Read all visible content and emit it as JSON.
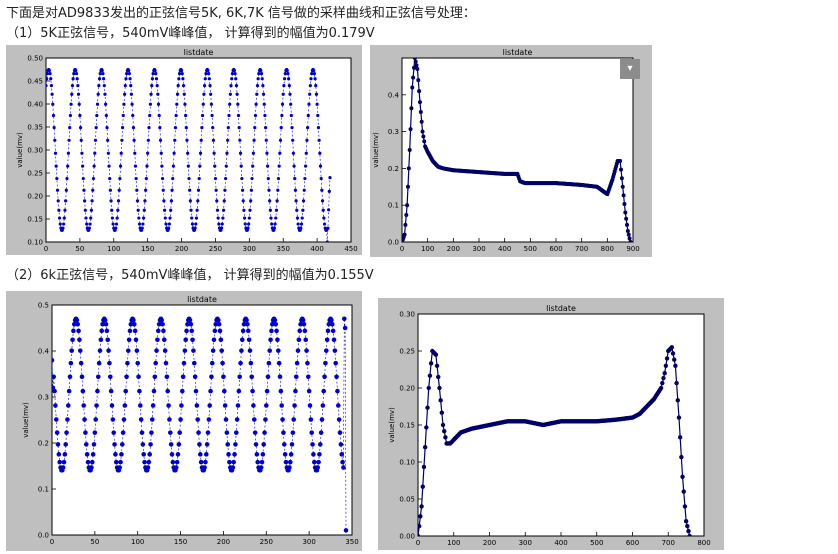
{
  "text": {
    "intro": "下面是对AD9833发出的正弦信号5K, 6K,7K 信号做的采样曲线和正弦信号处理：",
    "section1": "（1）5K正弦信号，540mV峰峰值， 计算得到的幅值为0.179V",
    "section2": "（2）6k正弦信号，540mV峰峰值， 计算得到的幅值为0.155V"
  },
  "icons": {
    "dropdown": "▾"
  },
  "colors": {
    "frame": "#bfbfbf",
    "series_light": "#0000cc",
    "series_dark": "#000066"
  },
  "chart_data": [
    {
      "type": "scatter",
      "title": "listdate",
      "ylabel": "value(mv)",
      "xlim": [
        0,
        450
      ],
      "ylim": [
        0.1,
        0.5
      ],
      "xticks": [
        0,
        50,
        100,
        150,
        200,
        250,
        300,
        350,
        400,
        450
      ],
      "yticks": [
        0.1,
        0.15,
        0.2,
        0.25,
        0.3,
        0.35,
        0.4,
        0.45,
        0.5
      ],
      "tick_labels_x": [
        "0",
        "50",
        "100",
        "150",
        "200",
        "250",
        "300",
        "350",
        "400",
        "450"
      ],
      "tick_labels_y": [
        "0.10",
        "0.15",
        "0.20",
        "0.25",
        "0.30",
        "0.35",
        "0.40",
        "0.45",
        "0.50"
      ],
      "series": [
        {
          "kind": "sine",
          "x_range": [
            0,
            420
          ],
          "min": 0.125,
          "max": 0.475,
          "period": 39.0,
          "first_peak_x": 4,
          "tail": [
            [
              415,
              0.1
            ],
            [
              416,
              0.13
            ],
            [
              417,
              0.17
            ],
            [
              418,
              0.21
            ],
            [
              419,
              0.24
            ]
          ]
        }
      ]
    },
    {
      "type": "line",
      "title": "listdate",
      "ylabel": "value(mv)",
      "xlim": [
        0,
        900
      ],
      "ylim": [
        0,
        0.5
      ],
      "xticks": [
        0,
        100,
        200,
        300,
        400,
        500,
        600,
        700,
        800,
        900
      ],
      "yticks": [
        0.0,
        0.1,
        0.2,
        0.3,
        0.4
      ],
      "tick_labels_x": [
        "0",
        "100",
        "200",
        "300",
        "400",
        "500",
        "600",
        "700",
        "800",
        "900"
      ],
      "tick_labels_y": [
        "0.0",
        "0.1",
        "0.2",
        "0.3",
        "0.4"
      ],
      "series": [
        {
          "x": [
            0,
            10,
            20,
            30,
            40,
            50,
            60,
            70,
            80,
            90,
            100,
            120,
            140,
            160,
            200,
            300,
            400,
            450,
            460,
            480,
            500,
            600,
            700,
            760,
            800,
            820,
            840,
            850,
            860,
            870,
            880,
            890
          ],
          "y": [
            0.0,
            0.02,
            0.1,
            0.25,
            0.42,
            0.5,
            0.47,
            0.38,
            0.3,
            0.26,
            0.245,
            0.22,
            0.205,
            0.2,
            0.195,
            0.19,
            0.185,
            0.185,
            0.165,
            0.16,
            0.16,
            0.16,
            0.155,
            0.15,
            0.13,
            0.17,
            0.22,
            0.22,
            0.15,
            0.08,
            0.03,
            0.0
          ]
        }
      ]
    },
    {
      "type": "scatter",
      "title": "listdate",
      "ylabel": "value(mv)",
      "xlim": [
        0,
        350
      ],
      "ylim": [
        0.0,
        0.5
      ],
      "xticks": [
        0,
        50,
        100,
        150,
        200,
        250,
        300,
        350
      ],
      "yticks": [
        0.0,
        0.1,
        0.2,
        0.3,
        0.4,
        0.5
      ],
      "tick_labels_x": [
        "0",
        "50",
        "100",
        "150",
        "200",
        "250",
        "300",
        "350"
      ],
      "tick_labels_y": [
        "0.0",
        "0.1",
        "0.2",
        "0.3",
        "0.4",
        "0.5"
      ],
      "series": [
        {
          "kind": "sine",
          "x_range": [
            0,
            341
          ],
          "min": 0.14,
          "max": 0.47,
          "period": 33.0,
          "first_peak_x": 28,
          "start": [
            [
              0,
              0.38
            ],
            [
              1,
              0.32
            ]
          ],
          "tail": [
            [
              341,
              0.47
            ],
            [
              342,
              0.45
            ],
            [
              343,
              0.01
            ]
          ]
        }
      ]
    },
    {
      "type": "line",
      "title": "listdate",
      "ylabel": "value(mv)",
      "xlim": [
        0,
        800
      ],
      "ylim": [
        0.0,
        0.3
      ],
      "xticks": [
        0,
        100,
        200,
        300,
        400,
        500,
        600,
        700,
        800
      ],
      "yticks": [
        0.0,
        0.05,
        0.1,
        0.15,
        0.2,
        0.25,
        0.3
      ],
      "tick_labels_x": [
        "0",
        "100",
        "200",
        "300",
        "400",
        "500",
        "600",
        "700",
        "800"
      ],
      "tick_labels_y": [
        "0.00",
        "0.05",
        "0.10",
        "0.15",
        "0.20",
        "0.25",
        "0.30"
      ],
      "series": [
        {
          "x": [
            0,
            10,
            20,
            30,
            40,
            50,
            60,
            70,
            80,
            90,
            100,
            120,
            150,
            200,
            250,
            300,
            350,
            400,
            450,
            500,
            550,
            600,
            620,
            640,
            660,
            680,
            690,
            700,
            710,
            720,
            730,
            740,
            750,
            760
          ],
          "y": [
            0.0,
            0.04,
            0.12,
            0.2,
            0.25,
            0.245,
            0.2,
            0.15,
            0.125,
            0.125,
            0.13,
            0.14,
            0.145,
            0.15,
            0.155,
            0.155,
            0.15,
            0.155,
            0.155,
            0.155,
            0.157,
            0.16,
            0.165,
            0.175,
            0.185,
            0.2,
            0.22,
            0.25,
            0.255,
            0.23,
            0.16,
            0.08,
            0.02,
            0.0
          ]
        }
      ]
    }
  ]
}
